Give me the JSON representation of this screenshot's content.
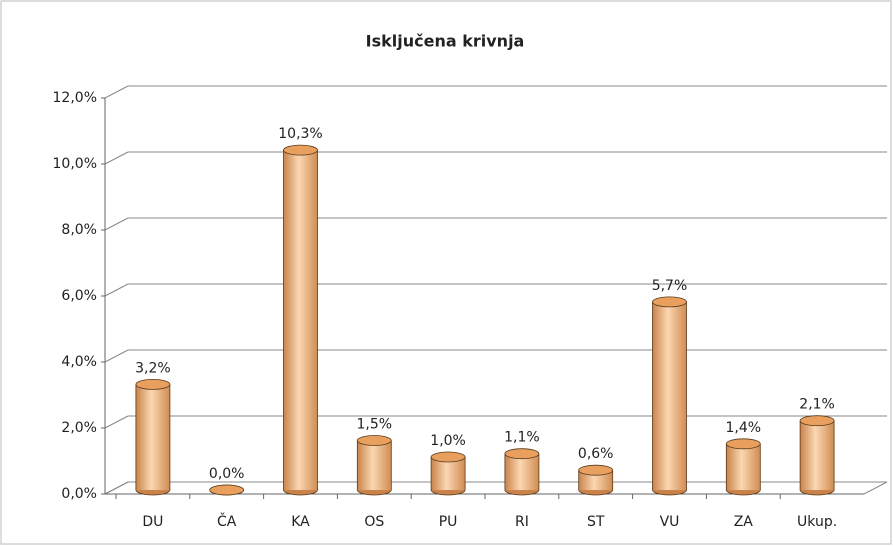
{
  "chart_data": {
    "type": "bar",
    "title": "Isključena krivnja",
    "categories": [
      "DU",
      "ČA",
      "KA",
      "OS",
      "PU",
      "RI",
      "ST",
      "VU",
      "ZA",
      "Ukup."
    ],
    "values": [
      3.2,
      0.0,
      10.3,
      1.5,
      1.0,
      1.1,
      0.6,
      5.7,
      1.4,
      2.1
    ],
    "value_labels": [
      "3,2%",
      "0,0%",
      "10,3%",
      "1,5%",
      "1,0%",
      "1,1%",
      "0,6%",
      "5,7%",
      "1,4%",
      "2,1%"
    ],
    "color": "#f5b47a",
    "ylim": [
      0,
      12
    ],
    "yticks": [
      {
        "value": 0,
        "label": "0,0%"
      },
      {
        "value": 2,
        "label": "2,0%"
      },
      {
        "value": 4,
        "label": "4,0%"
      },
      {
        "value": 6,
        "label": "6,0%"
      },
      {
        "value": 8,
        "label": "8,0%"
      },
      {
        "value": 10,
        "label": "10,0%"
      },
      {
        "value": 12,
        "label": "12,0%"
      }
    ],
    "grid": true
  }
}
